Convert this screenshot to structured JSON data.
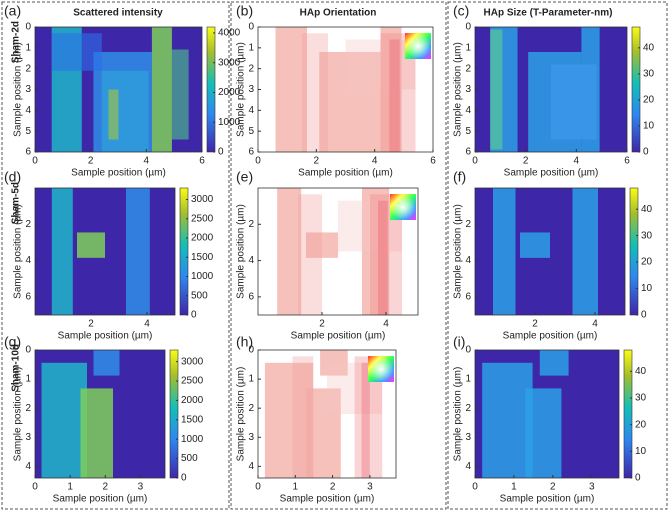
{
  "panels": [
    {
      "label": "(a)",
      "title": "Scattered intensity",
      "sample": "Sham-2d",
      "x_label": "Sample position (µm)",
      "y_label": "Sample position (µm)",
      "xlim": [
        0,
        6
      ],
      "xticks": [
        0,
        2,
        4,
        6
      ],
      "ylim": [
        0,
        6
      ],
      "yticks": [
        0,
        1,
        2,
        3,
        4,
        5,
        6
      ],
      "clim": [
        0,
        4200
      ],
      "cticks": [
        0,
        1000,
        2000,
        3000,
        4000
      ]
    },
    {
      "label": "(b)",
      "title": "HAp Orientation",
      "x_label": "Sample position (µm)",
      "y_label": "Sample position (µm)",
      "xlim": [
        0,
        6
      ],
      "xticks": [
        0,
        2,
        4,
        6
      ],
      "ylim": [
        0,
        6
      ],
      "yticks": [
        0,
        1,
        2,
        3,
        4,
        5,
        6
      ]
    },
    {
      "label": "(c)",
      "title": "HAp Size (T-Parameter-nm)",
      "x_label": "Sample position (µm)",
      "y_label": "Sample position (µm)",
      "xlim": [
        0,
        6
      ],
      "xticks": [
        0,
        2,
        4,
        6
      ],
      "ylim": [
        0,
        6
      ],
      "yticks": [
        0,
        1,
        2,
        3,
        4,
        5,
        6
      ],
      "clim": [
        0,
        48
      ],
      "cticks": [
        0,
        10,
        20,
        30,
        40
      ]
    },
    {
      "label": "(d)",
      "sample": "Sham-5d",
      "x_label": "Sample position (µm)",
      "y_label": "Sample position (µm)",
      "xlim": [
        0,
        5
      ],
      "xticks": [
        2,
        4
      ],
      "ylim": [
        0,
        7
      ],
      "yticks": [
        2,
        4,
        6
      ],
      "clim": [
        0,
        3300
      ],
      "cticks": [
        0,
        500,
        1000,
        1500,
        2000,
        2500,
        3000
      ]
    },
    {
      "label": "(e)",
      "x_label": "Sample position (µm)",
      "y_label": "Sample position (µm)",
      "xlim": [
        0,
        5
      ],
      "xticks": [
        2,
        4
      ],
      "ylim": [
        0,
        7
      ],
      "yticks": [
        2,
        4,
        6
      ]
    },
    {
      "label": "(f)",
      "x_label": "Sample position (µm)",
      "y_label": "Sample position (µm)",
      "xlim": [
        0,
        5
      ],
      "xticks": [
        2,
        4
      ],
      "ylim": [
        0,
        7
      ],
      "yticks": [
        2,
        4,
        6
      ],
      "clim": [
        0,
        48
      ],
      "cticks": [
        0,
        10,
        20,
        30,
        40
      ]
    },
    {
      "label": "(g)",
      "sample": "Sham-10d",
      "x_label": "Sample position (µm)",
      "y_label": "Sample position (µm)",
      "xlim": [
        0,
        3.7
      ],
      "xticks": [
        0,
        1,
        2,
        3
      ],
      "ylim": [
        0,
        4.4
      ],
      "yticks": [
        0,
        1,
        2,
        3,
        4
      ],
      "clim": [
        0,
        3300
      ],
      "cticks": [
        0,
        500,
        1000,
        1500,
        2000,
        2500,
        3000
      ]
    },
    {
      "label": "(h)",
      "x_label": "Sample position (µm)",
      "y_label": "Sample position (µm)",
      "xlim": [
        0,
        3.7
      ],
      "xticks": [
        0,
        1,
        2,
        3
      ],
      "ylim": [
        0,
        4.4
      ],
      "yticks": [
        0,
        1,
        2,
        3,
        4
      ]
    },
    {
      "label": "(i)",
      "x_label": "Sample position (µm)",
      "y_label": "Sample position (µm)",
      "xlim": [
        0,
        3.7
      ],
      "xticks": [
        0,
        1,
        2,
        3
      ],
      "ylim": [
        0,
        4.4
      ],
      "yticks": [
        0,
        1,
        2,
        3,
        4
      ],
      "clim": [
        0,
        48
      ],
      "cticks": [
        0,
        10,
        20,
        30,
        40
      ]
    }
  ]
}
